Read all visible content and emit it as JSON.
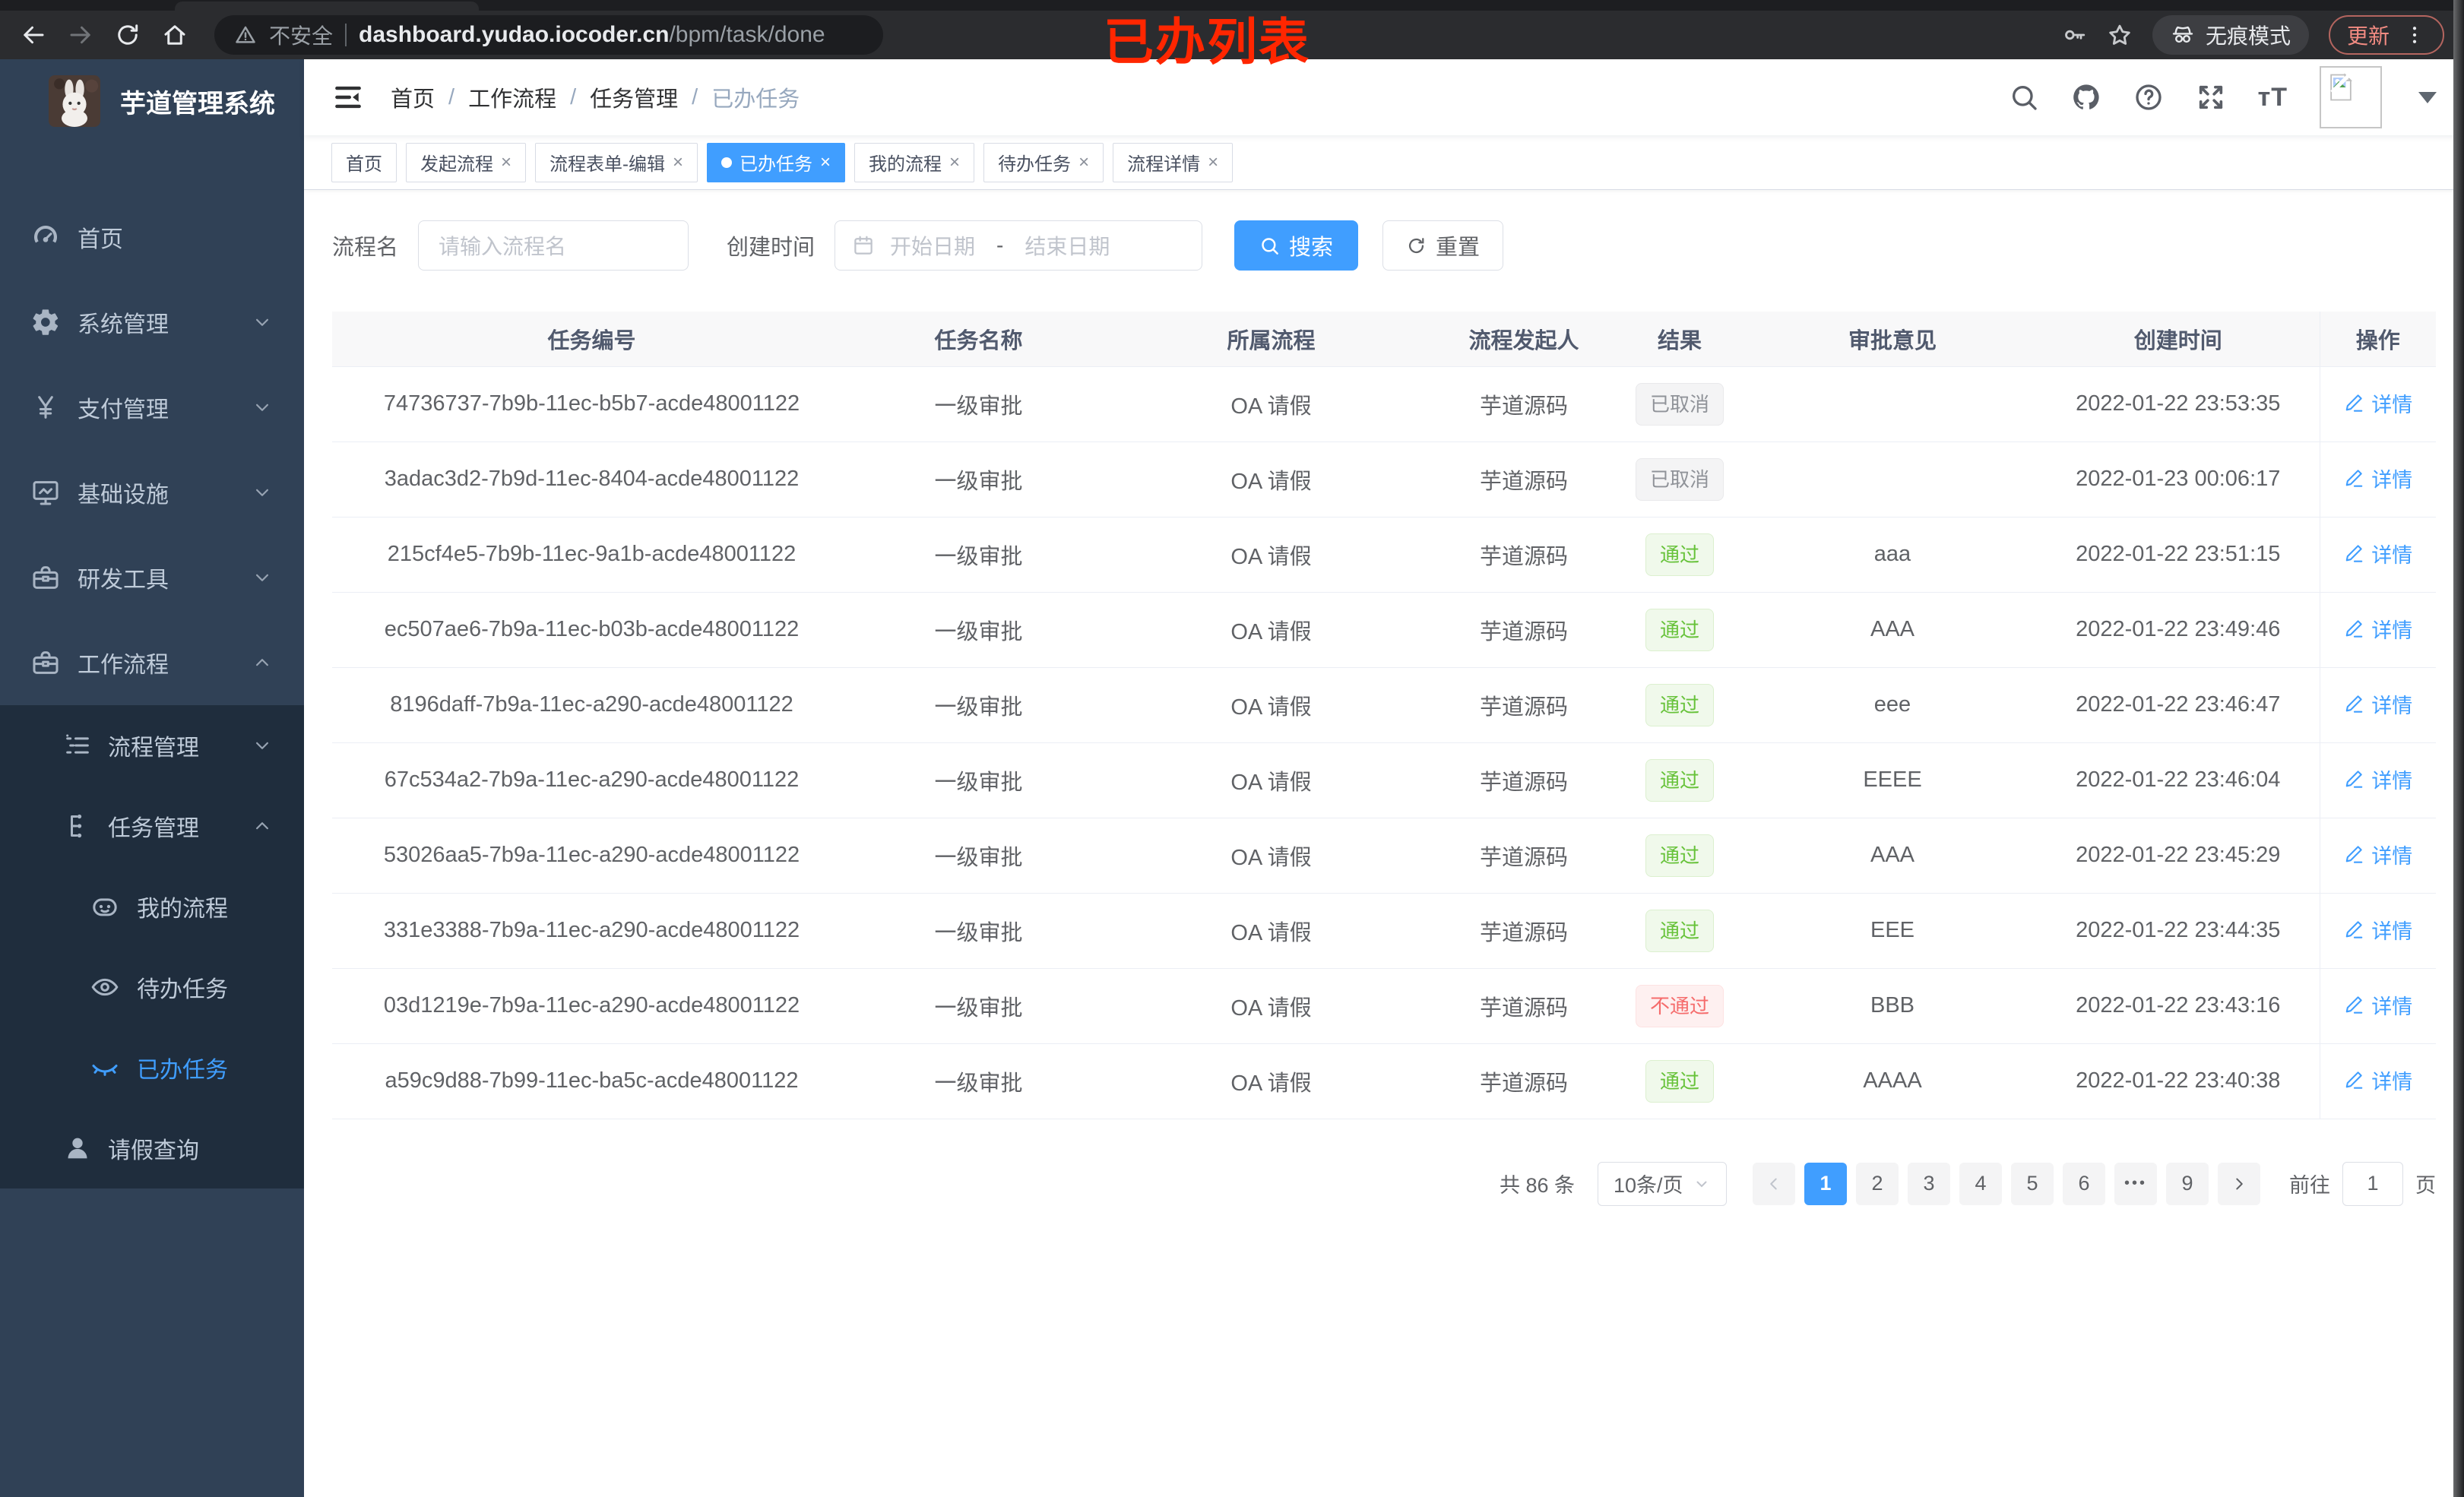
{
  "browser": {
    "security_label": "不安全",
    "url_host": "dashboard.yudao.iocoder.cn",
    "url_path": "/bpm/task/done",
    "incognito_label": "无痕模式",
    "update_label": "更新"
  },
  "annotation": "已办列表",
  "sidebar": {
    "logo_title": "芋道管理系统",
    "items": [
      {
        "id": "home",
        "label": "首页",
        "icon": "dashboard-icon",
        "level": 1,
        "chevron": null,
        "sub": false,
        "active": false
      },
      {
        "id": "system",
        "label": "系统管理",
        "icon": "gear-icon",
        "level": 1,
        "chevron": "down",
        "sub": false,
        "active": false
      },
      {
        "id": "pay",
        "label": "支付管理",
        "icon": "yen-icon",
        "level": 1,
        "chevron": "down",
        "sub": false,
        "active": false
      },
      {
        "id": "infra",
        "label": "基础设施",
        "icon": "monitor-icon",
        "level": 1,
        "chevron": "down",
        "sub": false,
        "active": false
      },
      {
        "id": "devtool",
        "label": "研发工具",
        "icon": "toolbox-icon",
        "level": 1,
        "chevron": "down",
        "sub": false,
        "active": false
      },
      {
        "id": "workflow",
        "label": "工作流程",
        "icon": "briefcase-icon",
        "level": 1,
        "chevron": "up",
        "sub": false,
        "active": false
      },
      {
        "id": "process-mgmt",
        "label": "流程管理",
        "icon": "flow-list-icon",
        "level": 2,
        "chevron": "down",
        "sub": true,
        "active": false
      },
      {
        "id": "task-mgmt",
        "label": "任务管理",
        "icon": "task-tree-icon",
        "level": 2,
        "chevron": "up",
        "sub": true,
        "active": false
      },
      {
        "id": "my-process",
        "label": "我的流程",
        "icon": "robot-icon",
        "level": 3,
        "chevron": null,
        "sub": true,
        "active": false
      },
      {
        "id": "todo-task",
        "label": "待办任务",
        "icon": "eye-icon",
        "level": 3,
        "chevron": null,
        "sub": true,
        "active": false
      },
      {
        "id": "done-task",
        "label": "已办任务",
        "icon": "eye-closed-icon",
        "level": 3,
        "chevron": null,
        "sub": true,
        "active": true
      },
      {
        "id": "leave-query",
        "label": "请假查询",
        "icon": "user-icon",
        "level": 2,
        "chevron": null,
        "sub": true,
        "active": false
      }
    ]
  },
  "breadcrumb": {
    "items": [
      "首页",
      "工作流程",
      "任务管理",
      "已办任务"
    ],
    "separator": "/"
  },
  "tabs": [
    {
      "label": "首页",
      "closable": false,
      "active": false
    },
    {
      "label": "发起流程",
      "closable": true,
      "active": false
    },
    {
      "label": "流程表单-编辑",
      "closable": true,
      "active": false
    },
    {
      "label": "已办任务",
      "closable": true,
      "active": true
    },
    {
      "label": "我的流程",
      "closable": true,
      "active": false
    },
    {
      "label": "待办任务",
      "closable": true,
      "active": false
    },
    {
      "label": "流程详情",
      "closable": true,
      "active": false
    }
  ],
  "filters": {
    "name_label": "流程名",
    "name_placeholder": "请输入流程名",
    "time_label": "创建时间",
    "start_placeholder": "开始日期",
    "range_separator": "-",
    "end_placeholder": "结束日期",
    "search_label": "搜索",
    "reset_label": "重置"
  },
  "table": {
    "columns": [
      "任务编号",
      "任务名称",
      "所属流程",
      "流程发起人",
      "结果",
      "审批意见",
      "创建时间",
      "操作"
    ],
    "detail_label": "详情",
    "rows": [
      {
        "id": "74736737-7b9b-11ec-b5b7-acde48001122",
        "name": "一级审批",
        "process": "OA 请假",
        "starter": "芋道源码",
        "result": "已取消",
        "result_type": "info",
        "comment": "",
        "time": "2022-01-22 23:53:35"
      },
      {
        "id": "3adac3d2-7b9d-11ec-8404-acde48001122",
        "name": "一级审批",
        "process": "OA 请假",
        "starter": "芋道源码",
        "result": "已取消",
        "result_type": "info",
        "comment": "",
        "time": "2022-01-23 00:06:17"
      },
      {
        "id": "215cf4e5-7b9b-11ec-9a1b-acde48001122",
        "name": "一级审批",
        "process": "OA 请假",
        "starter": "芋道源码",
        "result": "通过",
        "result_type": "success",
        "comment": "aaa",
        "time": "2022-01-22 23:51:15"
      },
      {
        "id": "ec507ae6-7b9a-11ec-b03b-acde48001122",
        "name": "一级审批",
        "process": "OA 请假",
        "starter": "芋道源码",
        "result": "通过",
        "result_type": "success",
        "comment": "AAA",
        "time": "2022-01-22 23:49:46"
      },
      {
        "id": "8196daff-7b9a-11ec-a290-acde48001122",
        "name": "一级审批",
        "process": "OA 请假",
        "starter": "芋道源码",
        "result": "通过",
        "result_type": "success",
        "comment": "eee",
        "time": "2022-01-22 23:46:47"
      },
      {
        "id": "67c534a2-7b9a-11ec-a290-acde48001122",
        "name": "一级审批",
        "process": "OA 请假",
        "starter": "芋道源码",
        "result": "通过",
        "result_type": "success",
        "comment": "EEEE",
        "time": "2022-01-22 23:46:04"
      },
      {
        "id": "53026aa5-7b9a-11ec-a290-acde48001122",
        "name": "一级审批",
        "process": "OA 请假",
        "starter": "芋道源码",
        "result": "通过",
        "result_type": "success",
        "comment": "AAA",
        "time": "2022-01-22 23:45:29"
      },
      {
        "id": "331e3388-7b9a-11ec-a290-acde48001122",
        "name": "一级审批",
        "process": "OA 请假",
        "starter": "芋道源码",
        "result": "通过",
        "result_type": "success",
        "comment": "EEE",
        "time": "2022-01-22 23:44:35"
      },
      {
        "id": "03d1219e-7b9a-11ec-a290-acde48001122",
        "name": "一级审批",
        "process": "OA 请假",
        "starter": "芋道源码",
        "result": "不通过",
        "result_type": "danger",
        "comment": "BBB",
        "time": "2022-01-22 23:43:16"
      },
      {
        "id": "a59c9d88-7b99-11ec-ba5c-acde48001122",
        "name": "一级审批",
        "process": "OA 请假",
        "starter": "芋道源码",
        "result": "通过",
        "result_type": "success",
        "comment": "AAAA",
        "time": "2022-01-22 23:40:38"
      }
    ]
  },
  "pagination": {
    "total_label": "共 86 条",
    "page_size_label": "10条/页",
    "pages": [
      "1",
      "2",
      "3",
      "4",
      "5",
      "6",
      "•••",
      "9"
    ],
    "active_page": "1",
    "goto_label": "前往",
    "goto_value": "1",
    "goto_unit": "页"
  },
  "colors": {
    "accent": "#409EFF",
    "success": "#67C23A",
    "danger": "#F56C6C",
    "info": "#909399",
    "sidebar_bg": "#304156",
    "submenu_bg": "#1F2D3D",
    "annotation_red": "#FF2600"
  }
}
